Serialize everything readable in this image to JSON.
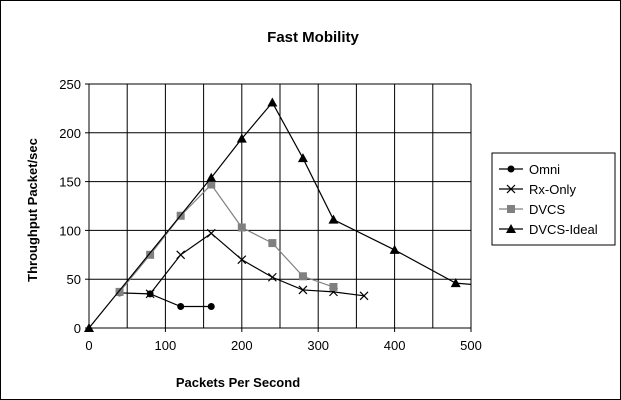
{
  "chart_data": {
    "type": "line",
    "title": "Fast Mobility",
    "xlabel": "Packets Per Second",
    "ylabel": "Throughput Packet/sec",
    "xlim": [
      0,
      500
    ],
    "ylim": [
      0,
      250
    ],
    "xticks": [
      0,
      100,
      200,
      300,
      400,
      500
    ],
    "yticks": [
      0,
      50,
      100,
      150,
      200,
      250
    ],
    "grid": true,
    "legend_position": "right",
    "series": [
      {
        "name": "Omni",
        "marker": "circle",
        "color": "#000000",
        "x": [
          40,
          80,
          120,
          160
        ],
        "y": [
          36,
          35,
          22,
          22
        ]
      },
      {
        "name": "Rx-Only",
        "marker": "x",
        "color": "#000000",
        "x": [
          80,
          120,
          160,
          200,
          240,
          280,
          320,
          360
        ],
        "y": [
          35,
          75,
          97,
          70,
          52,
          39,
          37,
          33
        ]
      },
      {
        "name": "DVCS",
        "marker": "square",
        "color": "#808080",
        "x": [
          40,
          80,
          120,
          160,
          200,
          240,
          280,
          320
        ],
        "y": [
          37,
          75,
          115,
          147,
          103,
          87,
          53,
          42
        ]
      },
      {
        "name": "DVCS-Ideal",
        "marker": "triangle",
        "color": "#000000",
        "x": [
          0,
          160,
          200,
          240,
          280,
          320,
          400,
          480,
          540
        ],
        "y": [
          0,
          154,
          194,
          231,
          174,
          111,
          80,
          46,
          42
        ]
      }
    ]
  }
}
